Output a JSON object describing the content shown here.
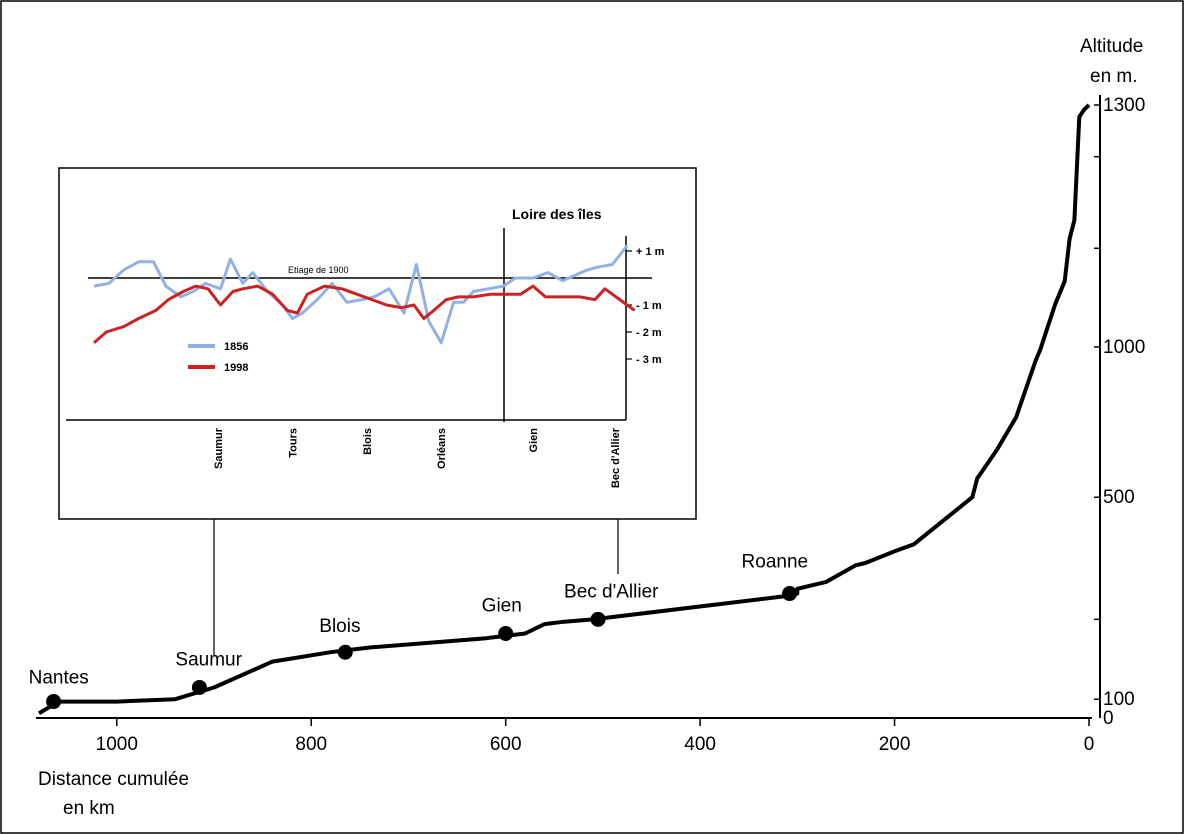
{
  "chart_data": [
    {
      "type": "line",
      "title": "",
      "xlabel": "Distance cumulée en km",
      "xlabel_lines": [
        "Distance cumulée",
        "en km"
      ],
      "ylabel": "Altitude en m.",
      "ylabel_lines": [
        "Altitude",
        "en m."
      ],
      "x_reversed": true,
      "xlim": [
        1080,
        0
      ],
      "ylim": [
        0,
        1300
      ],
      "x_ticks": [
        1000,
        800,
        600,
        400,
        200,
        0
      ],
      "x_tick_labels": [
        "1000",
        "800",
        "600",
        "400",
        "200",
        "0"
      ],
      "y_tick_labels": [
        {
          "value": 0,
          "label": "0"
        },
        {
          "value": 100,
          "label": "100"
        },
        {
          "value": 500,
          "label": "500"
        },
        {
          "value": 1000,
          "label": "1000"
        },
        {
          "value": 1300,
          "label": "1300"
        }
      ],
      "y_label_positions": [
        0,
        40,
        470,
        790,
        1305
      ],
      "y_minor_ticks": [
        40,
        210,
        470,
        790,
        1000,
        1195,
        1305
      ],
      "grid": false,
      "series": [
        {
          "color": "#000000",
          "x": [
            1080,
            1060,
            1000,
            940,
            900,
            840,
            780,
            740,
            620,
            580,
            560,
            540,
            510,
            490,
            310,
            300,
            300,
            270,
            240,
            230,
            200,
            180,
            120,
            115,
            95,
            75,
            55,
            50,
            35,
            25,
            20,
            15,
            10,
            5,
            0
          ],
          "y": [
            10,
            35,
            35,
            40,
            65,
            120,
            140,
            150,
            170,
            180,
            200,
            205,
            210,
            215,
            260,
            265,
            275,
            290,
            325,
            330,
            355,
            370,
            470,
            510,
            570,
            640,
            760,
            785,
            880,
            930,
            1020,
            1060,
            1280,
            1295,
            1305
          ]
        }
      ],
      "points": [
        {
          "label": "Nantes",
          "x": 1065,
          "y": 35
        },
        {
          "label": "Saumur",
          "x": 915,
          "y": 65
        },
        {
          "label": "Blois",
          "x": 765,
          "y": 140
        },
        {
          "label": "Gien",
          "x": 600,
          "y": 180
        },
        {
          "label": "Bec d'Allier",
          "x": 505,
          "y": 210
        },
        {
          "label": "Roanne",
          "x": 308,
          "y": 265
        }
      ]
    },
    {
      "type": "line",
      "title": "Loire des îles",
      "reference_line_label": "Etiage de 1900",
      "ylim": [
        -3.5,
        1.5
      ],
      "y_tick_labels": [
        {
          "value": 1,
          "label": "+ 1 m"
        },
        {
          "value": -1,
          "label": "- 1 m"
        },
        {
          "value": -2,
          "label": "- 2 m"
        },
        {
          "value": -3,
          "label": "- 3 m"
        }
      ],
      "x_stations": [
        "Saumur",
        "Tours",
        "Blois",
        "Orléans",
        "Gien",
        "Bec d'Allier"
      ],
      "station_x": [
        5,
        8,
        11,
        14,
        17.7,
        21
      ],
      "xlim": [
        0,
        22
      ],
      "gien_marker_x": 17.7,
      "series": [
        {
          "name": "1856",
          "color": "#91b0e4",
          "x": [
            0,
            0.6,
            1.2,
            1.8,
            2.4,
            2.9,
            3.5,
            4.0,
            4.5,
            5.1,
            5.5,
            6.0,
            6.4,
            7.0,
            7.6,
            8.0,
            8.4,
            9.0,
            9.6,
            10.2,
            10.8,
            11.3,
            11.9,
            12.5,
            13.0,
            13.5,
            14.0,
            14.5,
            14.9,
            15.3,
            15.9,
            16.5,
            17.0,
            17.7,
            18.3,
            18.9,
            19.4,
            19.9,
            20.3,
            20.9,
            21.5
          ],
          "y": [
            -0.3,
            -0.2,
            0.3,
            0.6,
            0.6,
            -0.3,
            -0.7,
            -0.5,
            -0.2,
            -0.4,
            0.7,
            -0.2,
            0.2,
            -0.5,
            -1.0,
            -1.5,
            -1.3,
            -0.8,
            -0.2,
            -0.9,
            -0.8,
            -0.7,
            -0.4,
            -1.3,
            0.5,
            -1.6,
            -2.4,
            -0.9,
            -0.9,
            -0.5,
            -0.4,
            -0.3,
            0.0,
            0.0,
            0.2,
            -0.1,
            0.1,
            0.3,
            0.4,
            0.5,
            1.2
          ]
        },
        {
          "name": "1998",
          "color": "#cc2222",
          "x": [
            0,
            0.5,
            1.2,
            1.8,
            2.5,
            3.0,
            3.6,
            4.1,
            4.6,
            5.1,
            5.6,
            6.0,
            6.6,
            7.2,
            7.8,
            8.2,
            8.6,
            9.3,
            10.0,
            10.6,
            11.2,
            11.8,
            12.4,
            12.9,
            13.3,
            13.7,
            14.2,
            14.7,
            15.3,
            16.0,
            16.6,
            17.2,
            17.7,
            18.2,
            18.9,
            19.6,
            20.2,
            20.6,
            21.2,
            21.8
          ],
          "y": [
            -2.4,
            -2.0,
            -1.8,
            -1.5,
            -1.2,
            -0.8,
            -0.5,
            -0.3,
            -0.4,
            -1.0,
            -0.5,
            -0.4,
            -0.3,
            -0.6,
            -1.2,
            -1.3,
            -0.6,
            -0.3,
            -0.4,
            -0.6,
            -0.8,
            -1.0,
            -1.1,
            -1.0,
            -1.5,
            -1.2,
            -0.8,
            -0.7,
            -0.7,
            -0.6,
            -0.6,
            -0.6,
            -0.3,
            -0.7,
            -0.7,
            -0.7,
            -0.8,
            -0.4,
            -0.8,
            -1.2
          ]
        }
      ]
    }
  ]
}
